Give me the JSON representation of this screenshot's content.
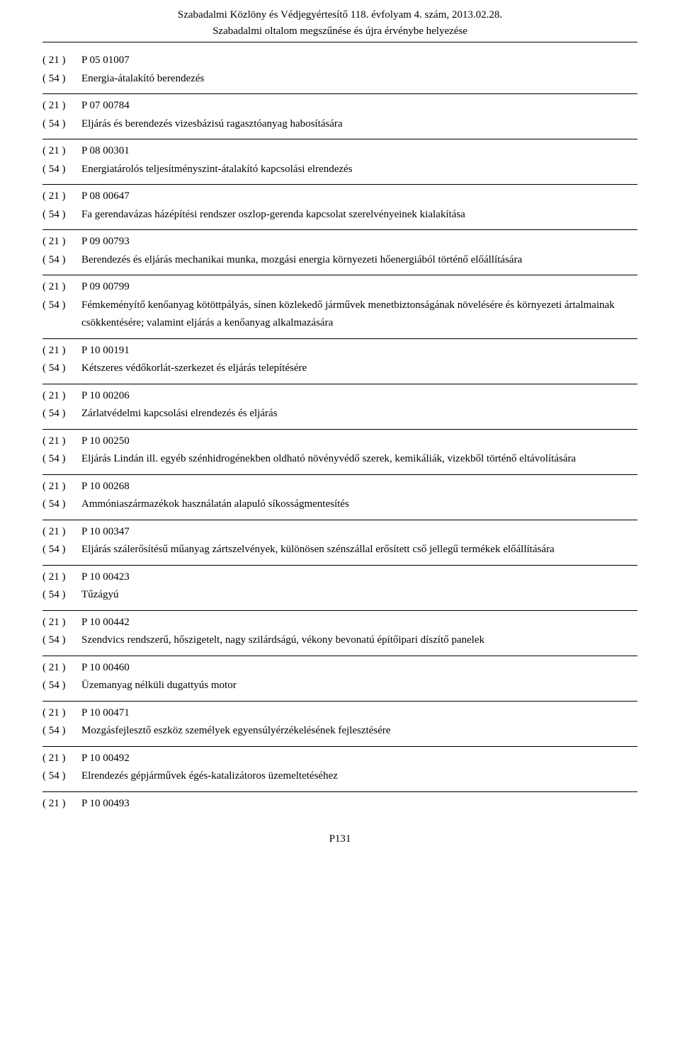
{
  "header": {
    "line1": "Szabadalmi Közlöny és Védjegyértesítő 118. évfolyam 4. szám, 2013.02.28.",
    "line2": "Szabadalmi oltalom megszűnése és újra érvénybe helyezése"
  },
  "code21": "( 21 )",
  "code54": "( 54 )",
  "entries": [
    {
      "id": "P 05 01007",
      "title": "Energia-átalakító berendezés"
    },
    {
      "id": "P 07 00784",
      "title": "Eljárás és berendezés vizesbázisú ragasztóanyag habosítására"
    },
    {
      "id": "P 08 00301",
      "title": "Energiatárolós teljesítményszint-átalakító kapcsolási elrendezés"
    },
    {
      "id": "P 08 00647",
      "title": "Fa gerendavázas házépítési rendszer oszlop-gerenda kapcsolat szerelvényeinek kialakítása"
    },
    {
      "id": "P 09 00793",
      "title": "Berendezés és eljárás mechanikai munka, mozgási energia környezeti hőenergiából történő előállítására"
    },
    {
      "id": "P 09 00799",
      "title": "Fémkeményítő kenőanyag kötöttpályás, sínen közlekedő járművek menetbiztonságának növelésére és környezeti ártalmainak csökkentésére; valamint eljárás a kenőanyag alkalmazására"
    },
    {
      "id": "P 10 00191",
      "title": "Kétszeres védőkorlát-szerkezet és eljárás telepítésére"
    },
    {
      "id": "P 10 00206",
      "title": "Zárlatvédelmi kapcsolási elrendezés és eljárás"
    },
    {
      "id": "P 10 00250",
      "title": "Eljárás Lindán ill. egyéb szénhidrogénekben oldható növényvédő szerek, kemikáliák, vizekből történő eltávolítására"
    },
    {
      "id": "P 10 00268",
      "title": "Ammóniaszármazékok használatán alapuló síkosságmentesítés"
    },
    {
      "id": "P 10 00347",
      "title": "Eljárás szálerősítésű műanyag zártszelvények, különösen szénszállal erősített cső jellegű termékek előállítására"
    },
    {
      "id": "P 10 00423",
      "title": "Tűzágyú"
    },
    {
      "id": "P 10 00442",
      "title": "Szendvics rendszerű, hőszigetelt, nagy szilárdságú, vékony bevonatú építőipari díszítő panelek"
    },
    {
      "id": "P 10 00460",
      "title": "Üzemanyag nélküli dugattyús motor"
    },
    {
      "id": "P 10 00471",
      "title": "Mozgásfejlesztő eszköz személyek egyensúlyérzékelésének fejlesztésére"
    },
    {
      "id": "P 10 00492",
      "title": "Elrendezés gépjárművek égés-katalizátoros üzemeltetéséhez"
    }
  ],
  "lastEntry": {
    "id": "P 10 00493"
  },
  "pageNumber": "P131"
}
